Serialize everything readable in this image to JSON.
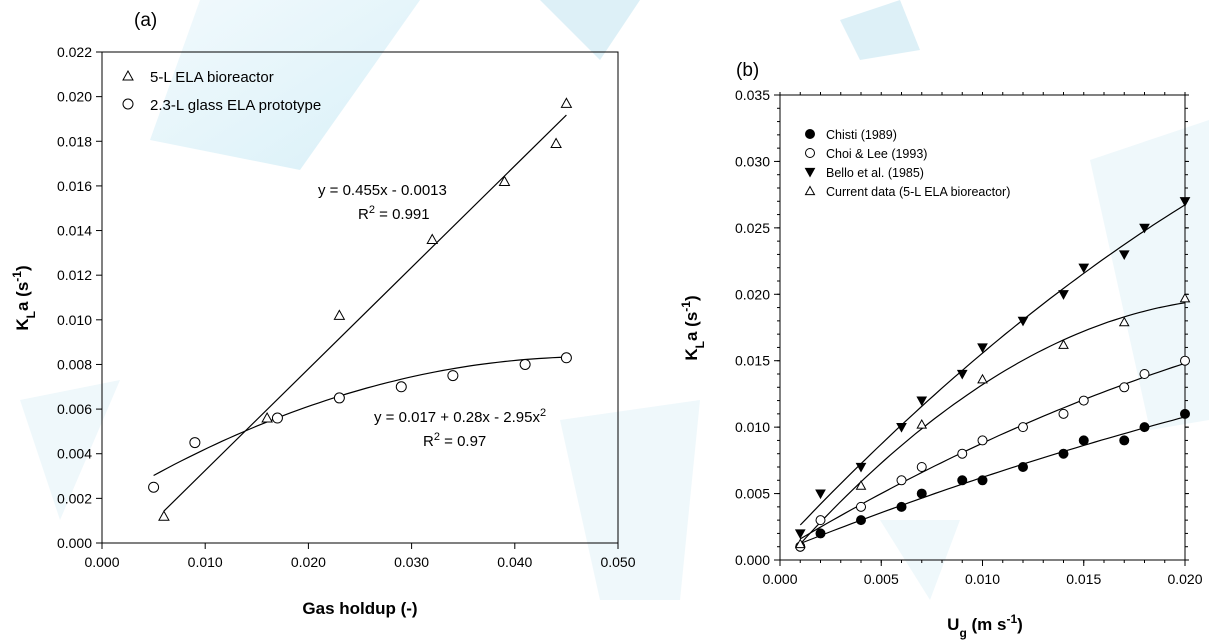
{
  "chart_data": [
    {
      "panel": "(a)",
      "type": "scatter",
      "xlabel": "Gas holdup (-)",
      "ylabel": "K_La (s^-1)",
      "xlim": [
        0.0,
        0.05
      ],
      "ylim": [
        0.0,
        0.022
      ],
      "xticks": [
        "0.000",
        "0.010",
        "0.020",
        "0.030",
        "0.040",
        "0.050"
      ],
      "yticks": [
        "0.000",
        "0.002",
        "0.004",
        "0.006",
        "0.008",
        "0.010",
        "0.012",
        "0.014",
        "0.016",
        "0.018",
        "0.020",
        "0.022"
      ],
      "legend_position": "top-left",
      "series": [
        {
          "name": "5-L ELA bioreactor",
          "marker": "triangle-open",
          "x": [
            0.006,
            0.016,
            0.023,
            0.032,
            0.039,
            0.044,
            0.045
          ],
          "y": [
            0.0012,
            0.0056,
            0.0102,
            0.0136,
            0.0162,
            0.0179,
            0.0197
          ],
          "fit": {
            "kind": "linear",
            "equation": "y = 0.455x - 0.0013",
            "r2": "R² = 0.991",
            "x_range": [
              0.006,
              0.045
            ]
          }
        },
        {
          "name": "2.3-L glass ELA prototype",
          "marker": "circle-open",
          "x": [
            0.005,
            0.009,
            0.017,
            0.023,
            0.029,
            0.034,
            0.041,
            0.045
          ],
          "y": [
            0.0025,
            0.0045,
            0.0056,
            0.0065,
            0.007,
            0.0075,
            0.008,
            0.0083
          ],
          "fit": {
            "kind": "quadratic",
            "equation": "y = 0.017 + 0.28x - 2.95x²",
            "r2": "R² = 0.97",
            "x_range": [
              0.005,
              0.045
            ]
          }
        }
      ]
    },
    {
      "panel": "(b)",
      "type": "scatter",
      "xlabel": "U_g (m s^-1)",
      "ylabel": "K_La (s^-1)",
      "xlim": [
        0.0,
        0.02
      ],
      "ylim": [
        0.0,
        0.035
      ],
      "xticks": [
        "0.000",
        "0.005",
        "0.010",
        "0.015",
        "0.020"
      ],
      "yticks": [
        "0.000",
        "0.005",
        "0.010",
        "0.015",
        "0.020",
        "0.025",
        "0.030",
        "0.035"
      ],
      "legend_position": "top-left",
      "series": [
        {
          "name": "Chisti (1989)",
          "marker": "circle-filled",
          "x": [
            0.001,
            0.002,
            0.004,
            0.006,
            0.007,
            0.009,
            0.01,
            0.012,
            0.014,
            0.015,
            0.017,
            0.018,
            0.02
          ],
          "y": [
            0.001,
            0.002,
            0.003,
            0.004,
            0.005,
            0.006,
            0.006,
            0.007,
            0.008,
            0.009,
            0.009,
            0.01,
            0.011
          ]
        },
        {
          "name": "Choi & Lee (1993)",
          "marker": "circle-open",
          "x": [
            0.001,
            0.002,
            0.004,
            0.006,
            0.007,
            0.009,
            0.01,
            0.012,
            0.014,
            0.015,
            0.017,
            0.018,
            0.02
          ],
          "y": [
            0.001,
            0.003,
            0.004,
            0.006,
            0.007,
            0.008,
            0.009,
            0.01,
            0.011,
            0.012,
            0.013,
            0.014,
            0.015
          ]
        },
        {
          "name": "Bello et al. (1985)",
          "marker": "triangle-down-filled",
          "x": [
            0.001,
            0.002,
            0.004,
            0.006,
            0.007,
            0.009,
            0.01,
            0.012,
            0.014,
            0.015,
            0.017,
            0.018,
            0.02
          ],
          "y": [
            0.002,
            0.005,
            0.007,
            0.01,
            0.012,
            0.014,
            0.016,
            0.018,
            0.02,
            0.022,
            0.023,
            0.025,
            0.027
          ]
        },
        {
          "name": "Current data (5-L ELA bioreactor)",
          "marker": "triangle-open",
          "x": [
            0.001,
            0.004,
            0.007,
            0.01,
            0.014,
            0.017,
            0.02
          ],
          "y": [
            0.0012,
            0.0056,
            0.0102,
            0.0136,
            0.0162,
            0.0179,
            0.0197
          ]
        }
      ]
    }
  ]
}
